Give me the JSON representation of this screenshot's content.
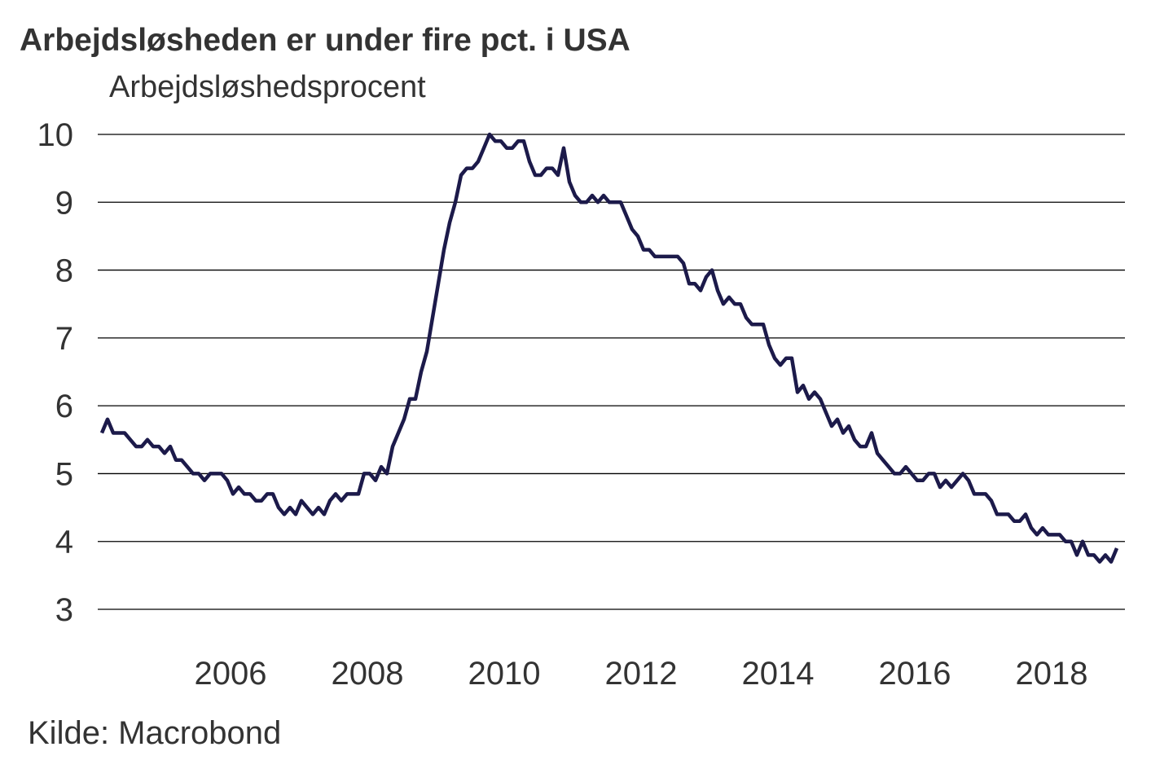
{
  "chart_data": {
    "type": "line",
    "title": "Arbejdsløsheden er under fire pct. i USA",
    "ylabel": "Arbejdsløshedsprocent",
    "source": "Kilde: Macrobond",
    "ylim": [
      3,
      10
    ],
    "yticks": [
      "3",
      "4",
      "5",
      "6",
      "7",
      "8",
      "9",
      "10"
    ],
    "xticks": [
      "2006",
      "2008",
      "2010",
      "2012",
      "2014",
      "2016",
      "2018"
    ],
    "grid": "horizontal",
    "line_color": "#1c1a4a",
    "start": "2004-02",
    "frequency": "monthly",
    "series": [
      {
        "values": [
          5.6,
          5.8,
          5.6,
          5.6,
          5.6,
          5.5,
          5.4,
          5.4,
          5.5,
          5.4,
          5.4,
          5.3,
          5.4,
          5.2,
          5.2,
          5.1,
          5.0,
          5.0,
          4.9,
          5.0,
          5.0,
          5.0,
          4.9,
          4.7,
          4.8,
          4.7,
          4.7,
          4.6,
          4.6,
          4.7,
          4.7,
          4.5,
          4.4,
          4.5,
          4.4,
          4.6,
          4.5,
          4.4,
          4.5,
          4.4,
          4.6,
          4.7,
          4.6,
          4.7,
          4.7,
          4.7,
          5.0,
          5.0,
          4.9,
          5.1,
          5.0,
          5.4,
          5.6,
          5.8,
          6.1,
          6.1,
          6.5,
          6.8,
          7.3,
          7.8,
          8.3,
          8.7,
          9.0,
          9.4,
          9.5,
          9.5,
          9.6,
          9.8,
          10.0,
          9.9,
          9.9,
          9.8,
          9.8,
          9.9,
          9.9,
          9.6,
          9.4,
          9.4,
          9.5,
          9.5,
          9.4,
          9.8,
          9.3,
          9.1,
          9.0,
          9.0,
          9.1,
          9.0,
          9.1,
          9.0,
          9.0,
          9.0,
          8.8,
          8.6,
          8.5,
          8.3,
          8.3,
          8.2,
          8.2,
          8.2,
          8.2,
          8.2,
          8.1,
          7.8,
          7.8,
          7.7,
          7.9,
          8.0,
          7.7,
          7.5,
          7.6,
          7.5,
          7.5,
          7.3,
          7.2,
          7.2,
          7.2,
          6.9,
          6.7,
          6.6,
          6.7,
          6.7,
          6.2,
          6.3,
          6.1,
          6.2,
          6.1,
          5.9,
          5.7,
          5.8,
          5.6,
          5.7,
          5.5,
          5.4,
          5.4,
          5.6,
          5.3,
          5.2,
          5.1,
          5.0,
          5.0,
          5.1,
          5.0,
          4.9,
          4.9,
          5.0,
          5.0,
          4.8,
          4.9,
          4.8,
          4.9,
          5.0,
          4.9,
          4.7,
          4.7,
          4.7,
          4.6,
          4.4,
          4.4,
          4.4,
          4.3,
          4.3,
          4.4,
          4.2,
          4.1,
          4.2,
          4.1,
          4.1,
          4.1,
          4.0,
          4.0,
          3.8,
          4.0,
          3.8,
          3.8,
          3.7,
          3.8,
          3.7,
          3.9
        ]
      }
    ]
  }
}
